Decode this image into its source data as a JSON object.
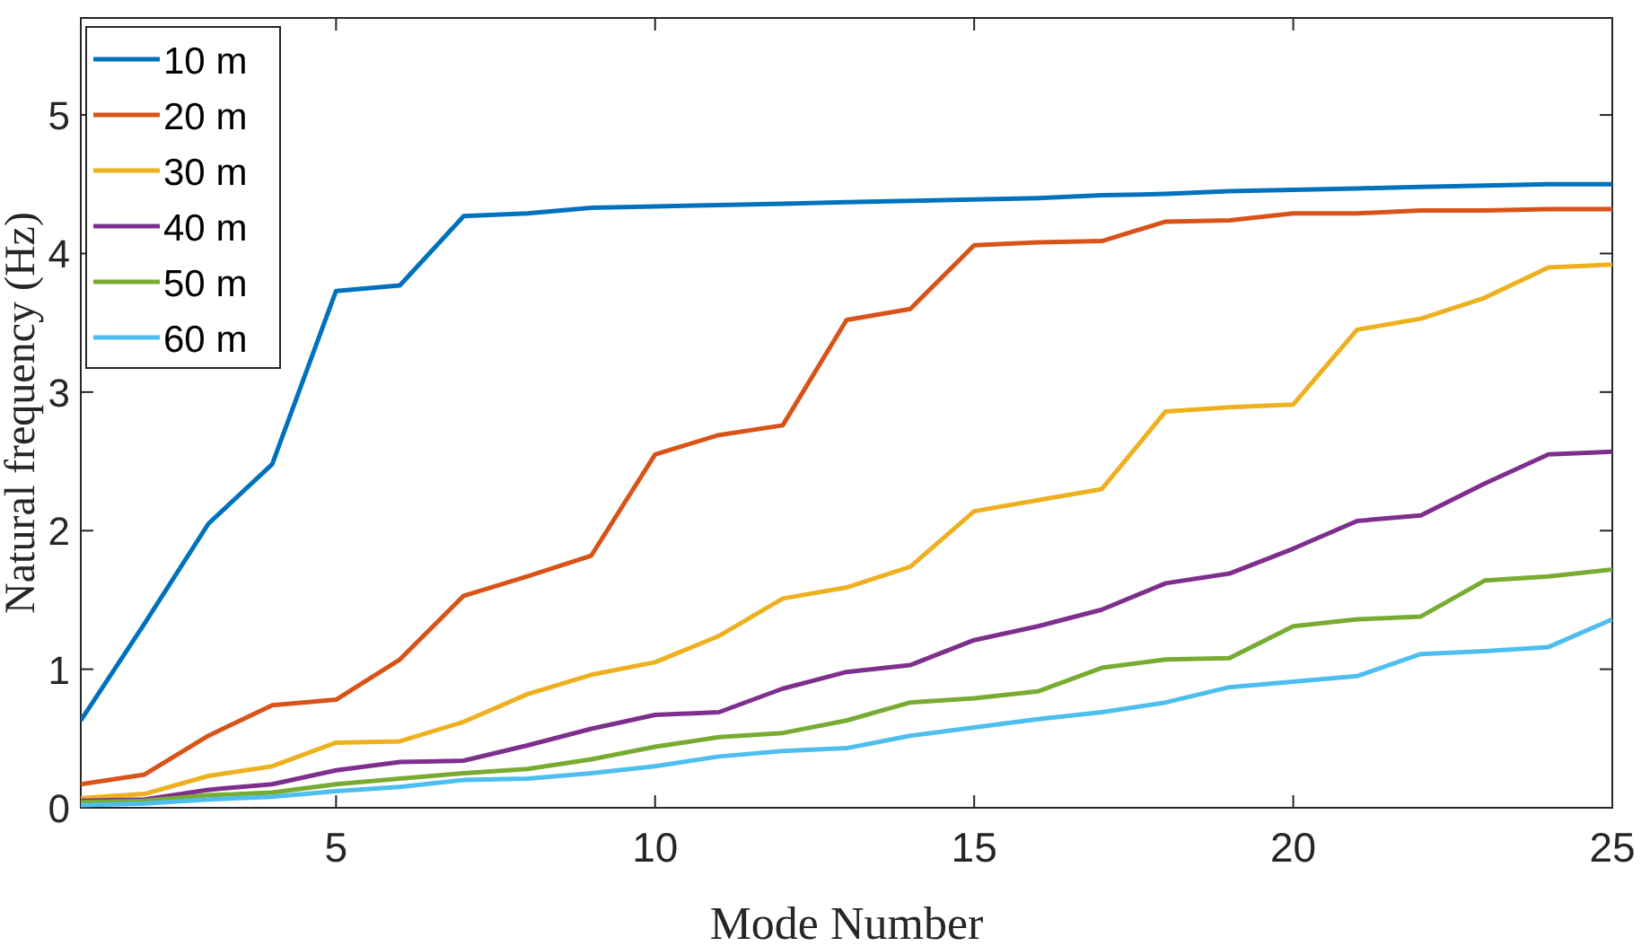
{
  "chart_data": {
    "type": "line",
    "xlabel": "Mode Number",
    "ylabel": "Natural frequency (Hz)",
    "x": [
      1,
      2,
      3,
      4,
      5,
      6,
      7,
      8,
      9,
      10,
      11,
      12,
      13,
      14,
      15,
      16,
      17,
      18,
      19,
      20,
      21,
      22,
      23,
      24,
      25
    ],
    "xlim": [
      1,
      25
    ],
    "xticks": [
      5,
      10,
      15,
      20,
      25
    ],
    "ylim": [
      0,
      5.7
    ],
    "yticks": [
      0,
      1,
      2,
      3,
      4,
      5
    ],
    "grid": false,
    "legend": "top left",
    "line_style": "solid",
    "marker": "none",
    "series": [
      {
        "name": "10 m",
        "color": "#0072bd",
        "values": [
          0.63,
          1.33,
          2.05,
          2.48,
          3.73,
          3.77,
          4.27,
          4.29,
          4.33,
          4.34,
          4.35,
          4.36,
          4.37,
          4.38,
          4.39,
          4.4,
          4.42,
          4.43,
          4.45,
          4.46,
          4.47,
          4.48,
          4.49,
          4.5,
          4.5
        ]
      },
      {
        "name": "20 m",
        "color": "#d95319",
        "values": [
          0.17,
          0.24,
          0.52,
          0.74,
          0.78,
          1.07,
          1.53,
          1.67,
          1.82,
          2.55,
          2.69,
          2.76,
          3.52,
          3.6,
          4.06,
          4.08,
          4.09,
          4.23,
          4.24,
          4.29,
          4.29,
          4.31,
          4.31,
          4.32,
          4.32
        ]
      },
      {
        "name": "30 m",
        "color": "#edb120",
        "values": [
          0.07,
          0.1,
          0.23,
          0.3,
          0.47,
          0.48,
          0.62,
          0.82,
          0.96,
          1.05,
          1.24,
          1.51,
          1.59,
          1.74,
          2.14,
          2.22,
          2.3,
          2.86,
          2.89,
          2.91,
          3.45,
          3.53,
          3.68,
          3.9,
          3.92
        ]
      },
      {
        "name": "40 m",
        "color": "#7e2f8e",
        "values": [
          0.05,
          0.06,
          0.13,
          0.17,
          0.27,
          0.33,
          0.34,
          0.45,
          0.57,
          0.67,
          0.69,
          0.86,
          0.98,
          1.03,
          1.21,
          1.31,
          1.43,
          1.62,
          1.69,
          1.87,
          2.07,
          2.11,
          2.34,
          2.55,
          2.57
        ]
      },
      {
        "name": "50 m",
        "color": "#77ac30",
        "values": [
          0.04,
          0.05,
          0.09,
          0.11,
          0.17,
          0.21,
          0.25,
          0.28,
          0.35,
          0.44,
          0.51,
          0.54,
          0.63,
          0.76,
          0.79,
          0.84,
          1.01,
          1.07,
          1.08,
          1.31,
          1.36,
          1.38,
          1.64,
          1.67,
          1.72
        ]
      },
      {
        "name": "60 m",
        "color": "#4dbeee",
        "values": [
          0.02,
          0.03,
          0.06,
          0.08,
          0.12,
          0.15,
          0.2,
          0.21,
          0.25,
          0.3,
          0.37,
          0.41,
          0.43,
          0.52,
          0.58,
          0.64,
          0.69,
          0.76,
          0.87,
          0.91,
          0.95,
          1.11,
          1.13,
          1.16,
          1.36
        ]
      }
    ]
  }
}
